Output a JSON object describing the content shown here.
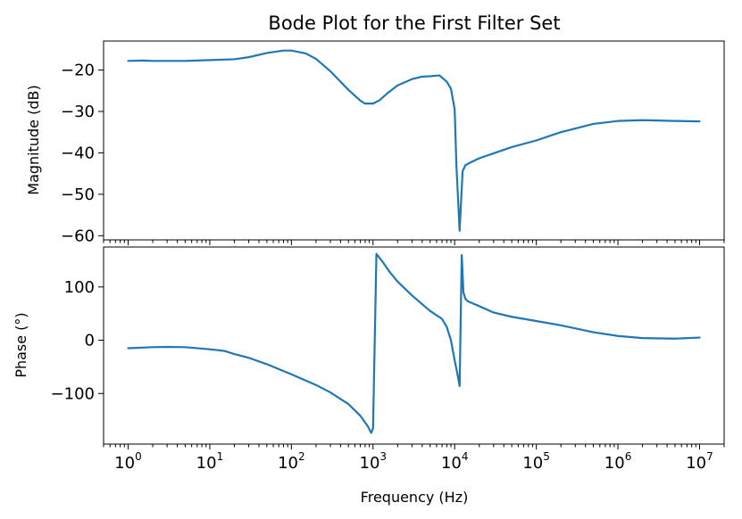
{
  "chart_data": [
    {
      "type": "line",
      "title": "Bode Plot for the First Filter Set",
      "xlabel": "",
      "ylabel": "Magnitude (dB)",
      "xscale": "log",
      "xlim": [
        0.5,
        20000000
      ],
      "ylim": [
        -61,
        -13
      ],
      "yticks": [
        -20,
        -30,
        -40,
        -50,
        -60
      ],
      "ytick_labels": [
        "−20",
        "−30",
        "−40",
        "−50",
        "−60"
      ],
      "show_x_tick_labels": false,
      "grid": false,
      "color": "#1f77b4",
      "series": [
        {
          "x": [
            1,
            1.5,
            2,
            3,
            5,
            10,
            20,
            30,
            50,
            80,
            100,
            150,
            200,
            300,
            500,
            700,
            800,
            1000,
            1200,
            1500,
            2000,
            3000,
            4000,
            5000,
            6500,
            8000,
            9000,
            10000,
            10500,
            11500,
            12500,
            13500,
            15000,
            20000,
            30000,
            50000,
            100000,
            200000,
            500000,
            1000000,
            2000000,
            5000000,
            10000000
          ],
          "y": [
            -17.8,
            -17.7,
            -17.8,
            -17.8,
            -17.8,
            -17.6,
            -17.4,
            -16.9,
            -15.9,
            -15.3,
            -15.3,
            -16.0,
            -17.3,
            -20.3,
            -24.8,
            -27.4,
            -28.1,
            -28.1,
            -27.3,
            -25.6,
            -23.7,
            -22.2,
            -21.6,
            -21.5,
            -21.3,
            -22.8,
            -24.5,
            -29.5,
            -43.0,
            -58.8,
            -44.5,
            -43.0,
            -42.5,
            -41.3,
            -40.1,
            -38.6,
            -37.0,
            -35.0,
            -33.0,
            -32.3,
            -32.1,
            -32.3,
            -32.4
          ]
        }
      ]
    },
    {
      "type": "line",
      "title": "",
      "xlabel": "Frequency (Hz)",
      "ylabel": "Phase (°)",
      "xscale": "log",
      "xlim": [
        0.5,
        20000000
      ],
      "ylim": [
        -195,
        175
      ],
      "yticks": [
        100,
        0,
        -100
      ],
      "ytick_labels": [
        "100",
        "0",
        "−100"
      ],
      "xticks": [
        1,
        10,
        100,
        1000,
        10000,
        100000,
        1000000,
        10000000
      ],
      "xtick_labels": [
        {
          "base": "10",
          "exp": "0"
        },
        {
          "base": "10",
          "exp": "1"
        },
        {
          "base": "10",
          "exp": "2"
        },
        {
          "base": "10",
          "exp": "3"
        },
        {
          "base": "10",
          "exp": "4"
        },
        {
          "base": "10",
          "exp": "5"
        },
        {
          "base": "10",
          "exp": "6"
        },
        {
          "base": "10",
          "exp": "7"
        }
      ],
      "show_x_tick_labels": true,
      "grid": false,
      "color": "#1f77b4",
      "series": [
        {
          "x": [
            1,
            2,
            3,
            5,
            10,
            15,
            20,
            30,
            50,
            100,
            200,
            300,
            500,
            700,
            850,
            950,
            1000,
            1100,
            1300,
            1600,
            2000,
            3000,
            5000,
            7000,
            8000,
            9000,
            10000,
            10700,
            11500,
            12200,
            12800,
            13500,
            14500,
            20000,
            30000,
            50000,
            100000,
            200000,
            500000,
            1000000,
            2000000,
            5000000,
            10000000
          ],
          "y": [
            -15,
            -13,
            -12.5,
            -13,
            -17,
            -20,
            -26,
            -33,
            -45,
            -64,
            -84,
            -98,
            -120,
            -142,
            -160,
            -174,
            -165,
            162,
            148,
            128,
            110,
            84,
            55,
            40,
            25,
            0,
            -38,
            -60,
            -86,
            160,
            90,
            78,
            73,
            64,
            52,
            44,
            36,
            28,
            15,
            8,
            4,
            3,
            5
          ]
        }
      ]
    }
  ]
}
